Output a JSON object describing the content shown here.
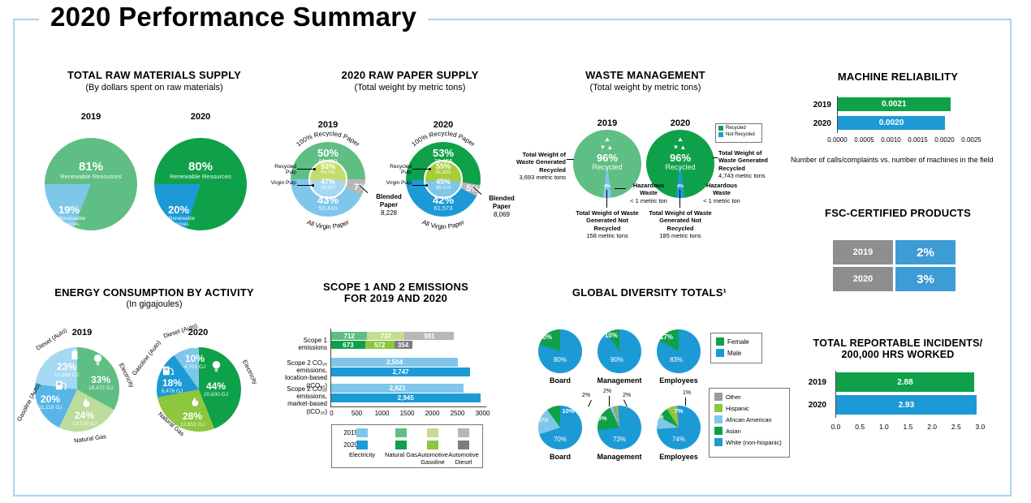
{
  "page": {
    "title": "2020 Performance Summary"
  },
  "colors": {
    "frame": "#A9D5EE",
    "green_2019": "#5FBE83",
    "green_2020": "#0FA14A",
    "blue_2019": "#7FC6EB",
    "blue_2020": "#1C9AD6",
    "gray_2019": "#B7B7B7",
    "gray_2020": "#7D7D7D",
    "table_gray": "#8E8E8E",
    "table_blue": "#3E9CD5"
  },
  "chart_data": [
    {
      "id": "total-raw-materials-supply",
      "type": "pie",
      "title": "TOTAL RAW MATERIALS SUPPLY",
      "subtitle": "(By dollars spent on raw materials)",
      "pies": [
        {
          "year": "2019",
          "start": 270,
          "slices": [
            {
              "label": "Renewable Resources",
              "pct": 81,
              "pct_label": "81%",
              "color": "#5FBE83"
            },
            {
              "label": "Non-Renewable Resources",
              "pct": 19,
              "pct_label": "19%",
              "color": "#7FC6EB"
            }
          ]
        },
        {
          "year": "2020",
          "start": 270,
          "slices": [
            {
              "label": "Renewable Resources",
              "pct": 80,
              "pct_label": "80%",
              "color": "#0FA14A"
            },
            {
              "label": "Non-Renewable Resources",
              "pct": 20,
              "pct_label": "20%",
              "color": "#1C9AD6"
            }
          ]
        }
      ]
    },
    {
      "id": "raw-paper-supply",
      "type": "pie",
      "title": "2020 RAW PAPER SUPPLY",
      "subtitle": "(Total weight by metric tons)",
      "pies": [
        {
          "year": "2019",
          "arc_top": "100% Recycled Paper",
          "arc_bottom": "All Virgin Paper",
          "outer": {
            "start": 270,
            "slices": [
              {
                "label": "100% Recycled Paper",
                "pct": 50,
                "pct_label": "50%",
                "value": "61,490",
                "color": "#5FBE83"
              },
              {
                "label": "Blended Paper",
                "pct": 7,
                "pct_label": "7%",
                "value": "8,228",
                "color": "#B7B7B7"
              },
              {
                "label": "All Virgin Paper",
                "pct": 43,
                "pct_label": "43%",
                "value": "53,410",
                "color": "#7FC6EB"
              }
            ]
          },
          "inner": {
            "start": 266,
            "slices": [
              {
                "label": "Recycled Pulp",
                "pct": 53,
                "pct_label": "53%",
                "value": "64,781",
                "color": "#C6DC6A"
              },
              {
                "label": "Virgin Pulp",
                "pct": 47,
                "pct_label": "47%",
                "value": "58,347",
                "color": "#A5D8F3"
              }
            ]
          },
          "callout": {
            "label": "Blended Paper",
            "value": "8,228"
          },
          "pulp_labels": [
            "Recycled Pulp",
            "Virgin Pulp"
          ]
        },
        {
          "year": "2020",
          "arc_top": "100% Recycled Paper",
          "arc_bottom": "All Virgin Paper",
          "outer": {
            "start": 268,
            "slices": [
              {
                "label": "100% Recycled Paper",
                "pct": 53,
                "pct_label": "53%",
                "value": "78,455",
                "color": "#0FA14A"
              },
              {
                "label": "Blended Paper",
                "pct": 5,
                "pct_label": "5%",
                "value": "8,069",
                "color": "#B7B7B7"
              },
              {
                "label": "All Virgin Paper",
                "pct": 42,
                "pct_label": "42%",
                "value": "61,573",
                "color": "#1C9AD6"
              }
            ]
          },
          "inner": {
            "start": 262,
            "slices": [
              {
                "label": "Recycled Pulp",
                "pct": 55,
                "pct_label": "55%",
                "value": "81,683",
                "color": "#A6CE39"
              },
              {
                "label": "Virgin Pulp",
                "pct": 45,
                "pct_label": "45%",
                "value": "66,414",
                "color": "#7FC6EB"
              }
            ]
          },
          "callout": {
            "label": "Blended Paper",
            "value": "8,069"
          },
          "pulp_labels": [
            "Recycled Pulp",
            "Virgin Pulp"
          ]
        }
      ]
    },
    {
      "id": "waste-management",
      "type": "pie",
      "title": "WASTE MANAGEMENT",
      "subtitle": "(Total weight by metric tons)",
      "legend": [
        {
          "label": "Recycled",
          "color": "#0FA14A"
        },
        {
          "label": "Not Recycled",
          "color": "#1C9AD6"
        }
      ],
      "pies": [
        {
          "year": "2019",
          "start": 187.2,
          "center_label": "Recycled",
          "slices": [
            {
              "label": "Recycled",
              "pct": 96,
              "pct_label": "96%",
              "color": "#5FBE83"
            },
            {
              "label": "Not Recycled",
              "pct": 4,
              "pct_label": "4%",
              "color": "#7FC6EB"
            }
          ],
          "recycled_callout": {
            "title": "Total Weight of Waste Generated Recycled",
            "value": "3,693 metric tons"
          },
          "not_recycled_callout": {
            "title": "Total Weight of Waste Generated Not Recycled",
            "value": "158 metric tons"
          },
          "hazardous_callout": {
            "title": "Hazardous Waste",
            "value": "< 1 metric ton"
          }
        },
        {
          "year": "2020",
          "start": 187.2,
          "center_label": "Recycled",
          "slices": [
            {
              "label": "Recycled",
              "pct": 96,
              "pct_label": "96%",
              "color": "#0FA14A"
            },
            {
              "label": "Not Recycled",
              "pct": 4,
              "pct_label": "4%",
              "color": "#1C9AD6"
            }
          ],
          "recycled_callout": {
            "title": "Total Weight of Waste Generated Recycled",
            "value": "4,743 metric tons"
          },
          "not_recycled_callout": {
            "title": "Total Weight of Waste Generated Not Recycled",
            "value": "185 metric tons"
          },
          "hazardous_callout": {
            "title": "Hazardous Waste",
            "value": "< 1 metric ton"
          }
        }
      ]
    },
    {
      "id": "machine-reliability",
      "type": "bar",
      "title": "MACHINE RELIABILITY",
      "categories": [
        "2019",
        "2020"
      ],
      "values": [
        0.0021,
        0.002
      ],
      "value_labels": [
        "0.0021",
        "0.0020"
      ],
      "bar_colors": [
        "#0FA14A",
        "#1C9AD6"
      ],
      "xlim": [
        0,
        0.0025
      ],
      "ticks": [
        "0.0000",
        "0.0005",
        "0.0010",
        "0.0015",
        "0.0020",
        "0.0025"
      ],
      "caption": "Number of calls/complaints vs. number of machines in the field"
    },
    {
      "id": "fsc-certified-products",
      "type": "table",
      "title": "FSC-CERTIFIED PRODUCTS",
      "rows": [
        {
          "year": "2019",
          "value": "2%"
        },
        {
          "year": "2020",
          "value": "3%"
        }
      ],
      "year_bg": "#8E8E8E",
      "value_bg": "#3E9CD5"
    },
    {
      "id": "energy-consumption-by-activity",
      "type": "pie",
      "title": "ENERGY CONSUMPTION BY ACTIVITY",
      "subtitle": "(In gigajoules)",
      "pies": [
        {
          "year": "2019",
          "start": 0,
          "slices": [
            {
              "label": "Electricity",
              "pct": 33,
              "pct_label": "33%",
              "value": "18,472 GJ",
              "color": "#5FBE83",
              "icon": "bulb"
            },
            {
              "label": "Natural Gas",
              "pct": 24,
              "pct_label": "24%",
              "value": "13,728 GJ",
              "color": "#BCDC9C",
              "icon": "flame"
            },
            {
              "label": "Gasoline (Auto)",
              "pct": 20,
              "pct_label": "20%",
              "value": "11,119 GJ",
              "color": "#58B5E8",
              "icon": "pump"
            },
            {
              "label": "Diesel (Auto)",
              "pct": 23,
              "pct_label": "23%",
              "value": "12,868 GJ",
              "color": "#A5D8F3",
              "icon": "battery"
            }
          ]
        },
        {
          "year": "2020",
          "start": 0,
          "slices": [
            {
              "label": "Electricity",
              "pct": 44,
              "pct_label": "44%",
              "value": "20,600 GJ",
              "color": "#0FA14A",
              "icon": "bulb"
            },
            {
              "label": "Natural Gas",
              "pct": 28,
              "pct_label": "28%",
              "value": "12,851 GJ",
              "color": "#8DC63F",
              "icon": "flame"
            },
            {
              "label": "Gasoline (Auto)",
              "pct": 18,
              "pct_label": "18%",
              "value": "8,478 GJ",
              "color": "#1C9AD6",
              "icon": "pump"
            },
            {
              "label": "Diesel (Auto)",
              "pct": 10,
              "pct_label": "10%",
              "value": "4,701 GJ",
              "color": "#7FC6EB",
              "icon": "battery"
            }
          ]
        }
      ]
    },
    {
      "id": "scope-1-and-2-emissions",
      "type": "bar",
      "title_lines": [
        "SCOPE 1 AND 2 EMISSIONS",
        "FOR 2019 AND 2020"
      ],
      "xlim": [
        0,
        3000
      ],
      "ticks": [
        "0",
        "500",
        "1000",
        "1500",
        "2000",
        "2500",
        "3000"
      ],
      "rows": [
        {
          "label_lines": [
            "Scope 1 emissions"
          ],
          "bars": [
            {
              "year": "2019",
              "segments": [
                {
                  "name": "Natural Gas",
                  "value": 712,
                  "label": "712",
                  "color": "#5FBE83"
                },
                {
                  "name": "Automotive Gasoline",
                  "value": 737,
                  "label": "737",
                  "color": "#C3DE8F"
                },
                {
                  "name": "Automotive Diesel",
                  "value": 981,
                  "label": "981",
                  "color": "#B7B7B7"
                }
              ]
            },
            {
              "year": "2020",
              "segments": [
                {
                  "name": "Natural Gas",
                  "value": 673,
                  "label": "673",
                  "color": "#0FA14A"
                },
                {
                  "name": "Automotive Gasoline",
                  "value": 572,
                  "label": "572",
                  "color": "#8DC63F"
                },
                {
                  "name": "Automotive Diesel",
                  "value": 354,
                  "label": "354",
                  "color": "#7D7D7D"
                }
              ]
            }
          ]
        },
        {
          "label_lines": [
            "Scope 2 CO₂ₑ emissions,",
            "location-based (tCO₂ₑ)"
          ],
          "bars": [
            {
              "year": "2019",
              "segments": [
                {
                  "name": "Electricity",
                  "value": 2504,
                  "label": "2,504",
                  "color": "#7FC6EB"
                }
              ]
            },
            {
              "year": "2020",
              "segments": [
                {
                  "name": "Electricity",
                  "value": 2747,
                  "label": "2,747",
                  "color": "#1C9AD6"
                }
              ]
            }
          ]
        },
        {
          "label_lines": [
            "Scope 2 CO₂ₑ emissions,",
            "market-based (tCO₂ₑ)"
          ],
          "bars": [
            {
              "year": "2019",
              "segments": [
                {
                  "name": "Electricity",
                  "value": 2621,
                  "label": "2,621",
                  "color": "#7FC6EB"
                }
              ]
            },
            {
              "year": "2020",
              "segments": [
                {
                  "name": "Electricity",
                  "value": 2945,
                  "label": "2,945",
                  "color": "#1C9AD6"
                }
              ]
            }
          ]
        }
      ],
      "legend": {
        "row_labels": [
          "2019",
          "2020"
        ],
        "columns": [
          {
            "label": "Electricity",
            "colors": [
              "#7FC6EB",
              "#1C9AD6"
            ]
          },
          {
            "label": "Natural Gas",
            "colors": [
              "#5FBE83",
              "#0FA14A"
            ]
          },
          {
            "label": "Automotive Gasoline",
            "colors": [
              "#C3DE8F",
              "#8DC63F"
            ]
          },
          {
            "label": "Automotive Diesel",
            "colors": [
              "#B7B7B7",
              "#7D7D7D"
            ]
          }
        ]
      }
    },
    {
      "id": "global-diversity-totals",
      "type": "pie",
      "title": "GLOBAL DIVERSITY TOTALS¹",
      "gender": {
        "legend": [
          {
            "label": "Female",
            "color": "#0FA14A"
          },
          {
            "label": "Male",
            "color": "#1C9AD6"
          }
        ],
        "pies": [
          {
            "group": "Board",
            "start": 288,
            "slices": [
              {
                "label": "Female",
                "pct": 20,
                "pct_label": "20%",
                "color": "#0FA14A"
              },
              {
                "label": "Male",
                "pct": 80,
                "pct_label": "80%",
                "color": "#1C9AD6"
              }
            ]
          },
          {
            "group": "Management",
            "start": 324,
            "slices": [
              {
                "label": "Female",
                "pct": 10,
                "pct_label": "10%",
                "color": "#0FA14A"
              },
              {
                "label": "Male",
                "pct": 90,
                "pct_label": "90%",
                "color": "#1C9AD6"
              }
            ]
          },
          {
            "group": "Employees",
            "start": 298.8,
            "slices": [
              {
                "label": "Female",
                "pct": 17,
                "pct_label": "17%",
                "color": "#0FA14A"
              },
              {
                "label": "Male",
                "pct": 83,
                "pct_label": "83%",
                "color": "#1C9AD6"
              }
            ]
          }
        ]
      },
      "ethnicity": {
        "legend": [
          {
            "label": "Other",
            "color": "#9B9B9B"
          },
          {
            "label": "Hispanic",
            "color": "#8DC63F"
          },
          {
            "label": "African American",
            "color": "#7FC6EB"
          },
          {
            "label": "Asian",
            "color": "#0FA14A"
          },
          {
            "label": "White (non-hispanic)",
            "color": "#1C9AD6"
          }
        ],
        "pies": [
          {
            "group": "Board",
            "start": 252,
            "slices": [
              {
                "label": "African American",
                "pct": 20,
                "pct_label": "20%",
                "color": "#7FC6EB"
              },
              {
                "label": "Asian",
                "pct": 10,
                "pct_label": "10%",
                "color": "#0FA14A"
              },
              {
                "label": "White (non-hispanic)",
                "pct": 70,
                "pct_label": "70%",
                "color": "#1C9AD6"
              }
            ]
          },
          {
            "group": "Management",
            "start": 262.8,
            "slices": [
              {
                "label": "Asian",
                "pct": 20,
                "pct_label": "20%",
                "color": "#0FA14A"
              },
              {
                "label": "African American",
                "pct": 2,
                "pct_label": "2%",
                "color": "#7FC6EB"
              },
              {
                "label": "Other",
                "pct": 2,
                "pct_label": "2%",
                "color": "#9B9B9B"
              },
              {
                "label": "Hispanic",
                "pct": 2,
                "pct_label": "2%",
                "color": "#8DC63F"
              },
              {
                "label": "White (non-hispanic)",
                "pct": 73,
                "pct_label": "73%",
                "color": "#1C9AD6"
              }
            ]
          },
          {
            "group": "Employees",
            "start": 266.4,
            "slices": [
              {
                "label": "African American",
                "pct": 9,
                "pct_label": "9%",
                "color": "#7FC6EB"
              },
              {
                "label": "Asian",
                "pct": 8,
                "pct_label": "8%",
                "color": "#0FA14A"
              },
              {
                "label": "Hispanic",
                "pct": 7,
                "pct_label": "7%",
                "color": "#8DC63F"
              },
              {
                "label": "Other",
                "pct": 1,
                "pct_label": "1%",
                "color": "#9B9B9B"
              },
              {
                "label": "White (non-hispanic)",
                "pct": 74,
                "pct_label": "74%",
                "color": "#1C9AD6"
              }
            ]
          }
        ]
      }
    },
    {
      "id": "total-reportable-incidents",
      "type": "bar",
      "title_lines": [
        "TOTAL REPORTABLE INCIDENTS/",
        "200,000 HRS WORKED"
      ],
      "categories": [
        "2019",
        "2020"
      ],
      "values": [
        2.88,
        2.93
      ],
      "value_labels": [
        "2.88",
        "2.93"
      ],
      "bar_colors": [
        "#0FA14A",
        "#1C9AD6"
      ],
      "xlim": [
        0,
        3
      ],
      "ticks": [
        "0.0",
        "0.5",
        "1.0",
        "1.5",
        "2.0",
        "2.5",
        "3.0"
      ]
    }
  ]
}
